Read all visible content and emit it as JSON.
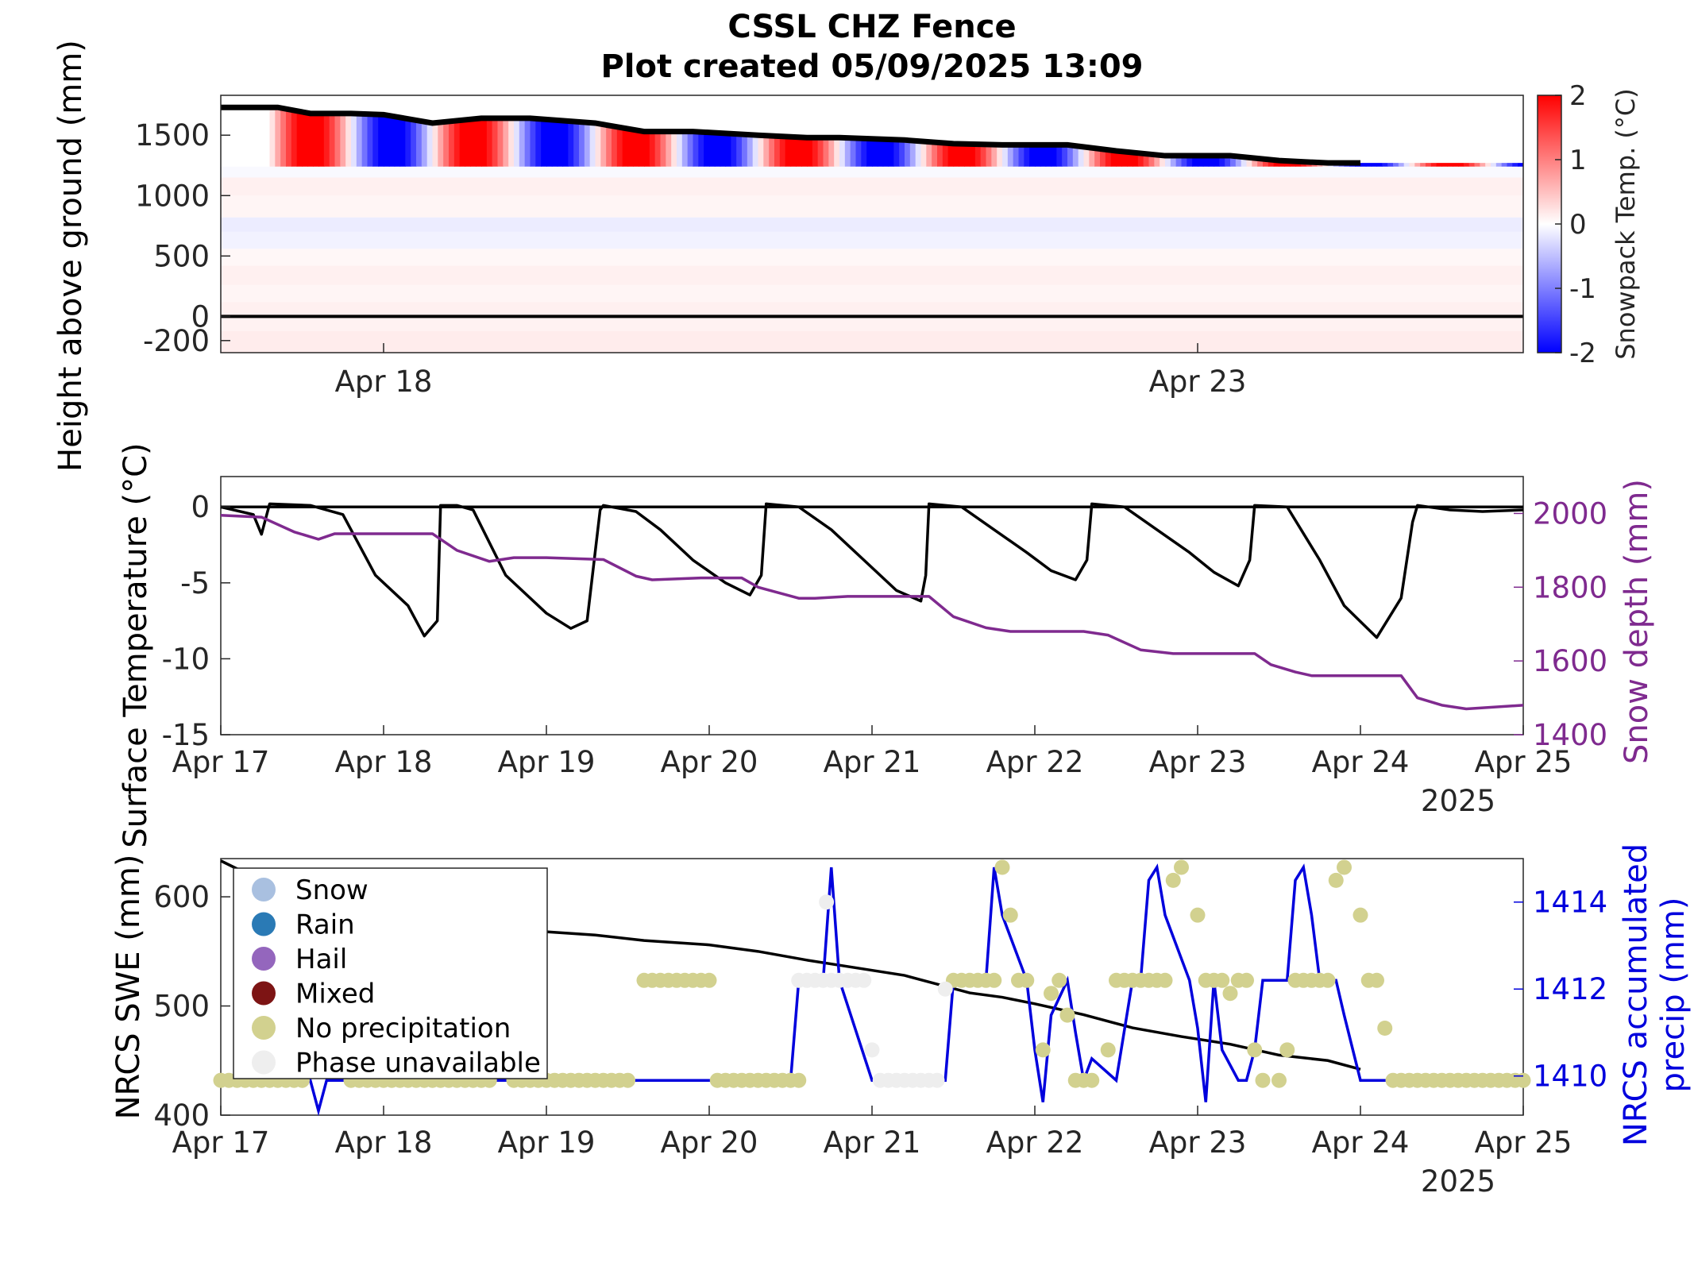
{
  "title": {
    "line1": "CSSL CHZ Fence",
    "line2": "Plot created 05/09/2025 13:09"
  },
  "chart_data": [
    {
      "type": "heatmap",
      "ylabel": "Height above ground (mm)",
      "yticks": [
        -200,
        0,
        500,
        1000,
        1500
      ],
      "ylim": [
        -300,
        1830
      ],
      "xticks": [
        {
          "day": 1,
          "label": "Apr 18"
        },
        {
          "day": 6,
          "label": "Apr 23"
        }
      ],
      "xlim_days": [
        0,
        8
      ],
      "colorbar": {
        "label": "Snowpack Temp. (°C)",
        "ticks": [
          -2,
          -1,
          0,
          1,
          2
        ],
        "range": [
          -2,
          2
        ],
        "colors": {
          "low": "#0000ff",
          "mid": "#ffffff",
          "high": "#ff0000"
        }
      },
      "snow_surface_mm": {
        "x_days": [
          0,
          0.35,
          0.55,
          0.8,
          1.0,
          1.3,
          1.6,
          1.9,
          2.3,
          2.6,
          2.9,
          3.3,
          3.6,
          3.8,
          4.2,
          4.5,
          4.8,
          5.2,
          5.5,
          5.8,
          6.0,
          6.2,
          6.5,
          6.8,
          7.0
        ],
        "y": [
          1730,
          1730,
          1680,
          1680,
          1670,
          1600,
          1640,
          1640,
          1600,
          1530,
          1530,
          1500,
          1480,
          1480,
          1460,
          1430,
          1420,
          1420,
          1370,
          1330,
          1330,
          1330,
          1290,
          1270,
          1270
        ]
      },
      "ground_line_mm": 0
    },
    {
      "type": "line",
      "ylabel": "Surface Temperature (°C)",
      "ylabel_right": "Snow depth (mm)",
      "yticks": [
        -15,
        -10,
        -5,
        0
      ],
      "ylim": [
        -15,
        2
      ],
      "yticks_right": [
        1400,
        1600,
        1800,
        2000
      ],
      "ylim_right": [
        1400,
        2100
      ],
      "xticks": [
        "Apr 17",
        "Apr 18",
        "Apr 19",
        "Apr 20",
        "Apr 21",
        "Apr 22",
        "Apr 23",
        "Apr 24",
        "Apr 25"
      ],
      "xlim_days": [
        0,
        8
      ],
      "year_label": "2025",
      "series": [
        {
          "axis": "left",
          "color": "#000000",
          "x_days": [
            0,
            0.2,
            0.25,
            0.3,
            0.55,
            0.75,
            0.95,
            1.15,
            1.25,
            1.33,
            1.35,
            1.45,
            1.55,
            1.75,
            2.0,
            2.15,
            2.25,
            2.33,
            2.35,
            2.55,
            2.7,
            2.9,
            3.1,
            3.25,
            3.32,
            3.35,
            3.55,
            3.75,
            3.95,
            4.15,
            4.3,
            4.33,
            4.35,
            4.55,
            4.75,
            4.95,
            5.1,
            5.25,
            5.32,
            5.35,
            5.55,
            5.75,
            5.95,
            6.1,
            6.25,
            6.32,
            6.35,
            6.55,
            6.75,
            6.9,
            7.1,
            7.25,
            7.32,
            7.35,
            7.55,
            7.75,
            8.0
          ],
          "values": [
            0,
            -0.5,
            -1.8,
            0.2,
            0.1,
            -0.5,
            -4.5,
            -6.5,
            -8.5,
            -7.5,
            0.1,
            0.1,
            -0.2,
            -4.5,
            -7,
            -8,
            -7.5,
            -0.2,
            0.1,
            -0.3,
            -1.5,
            -3.5,
            -5,
            -5.8,
            -4.5,
            0.2,
            0,
            -1.5,
            -3.5,
            -5.5,
            -6.2,
            -4.5,
            0.2,
            0,
            -1.5,
            -3,
            -4.2,
            -4.8,
            -3.5,
            0.2,
            0,
            -1.5,
            -3,
            -4.3,
            -5.2,
            -3.5,
            0.1,
            0,
            -3.5,
            -6.5,
            -8.6,
            -6,
            -1,
            0.1,
            -0.2,
            -0.3,
            -0.2
          ]
        },
        {
          "axis": "right",
          "color": "#7f2a8f",
          "x_days": [
            0,
            0.25,
            0.45,
            0.6,
            0.7,
            1.0,
            1.3,
            1.45,
            1.65,
            1.8,
            2.0,
            2.35,
            2.55,
            2.65,
            2.95,
            3.2,
            3.3,
            3.55,
            3.65,
            3.85,
            4.35,
            4.5,
            4.7,
            4.85,
            5.3,
            5.45,
            5.65,
            5.85,
            6.35,
            6.45,
            6.6,
            6.7,
            7.25,
            7.35,
            7.5,
            7.65,
            8.0
          ],
          "values": [
            1995,
            1990,
            1950,
            1930,
            1945,
            1945,
            1945,
            1900,
            1870,
            1880,
            1880,
            1875,
            1830,
            1820,
            1825,
            1825,
            1800,
            1770,
            1770,
            1775,
            1775,
            1720,
            1690,
            1680,
            1680,
            1670,
            1630,
            1620,
            1620,
            1590,
            1570,
            1560,
            1560,
            1500,
            1480,
            1470,
            1480
          ]
        }
      ]
    },
    {
      "type": "scatter",
      "ylabel": "NRCS SWE (mm)",
      "ylabel_right": "NRCS accumulated precip (mm)",
      "yticks": [
        400,
        500,
        600
      ],
      "ylim": [
        400,
        635
      ],
      "yticks_right": [
        1410,
        1412,
        1414
      ],
      "ylim_right": [
        1409.1,
        1415.0
      ],
      "xticks": [
        "Apr 17",
        "Apr 18",
        "Apr 19",
        "Apr 20",
        "Apr 21",
        "Apr 22",
        "Apr 23",
        "Apr 24",
        "Apr 25"
      ],
      "xlim_days": [
        0,
        8
      ],
      "year_label": "2025",
      "legend": {
        "placement": "top-left",
        "entries": [
          {
            "label": "Snow",
            "color": "#a9c0e0"
          },
          {
            "label": "Rain",
            "color": "#2a7ab5"
          },
          {
            "label": "Hail",
            "color": "#9466bd"
          },
          {
            "label": "Mixed",
            "color": "#7d1414"
          },
          {
            "label": "No precipitation",
            "color": "#d2d18f"
          },
          {
            "label": "Phase unavailable",
            "color": "#eeeeee"
          }
        ]
      },
      "swe_series": {
        "color": "#000000",
        "x_days": [
          0,
          0.15,
          0.3,
          0.6,
          1.0,
          1.5,
          2.0,
          2.3,
          2.6,
          3.0,
          3.3,
          3.6,
          3.9,
          4.2,
          4.4,
          4.6,
          4.8,
          5.0,
          5.3,
          5.6,
          5.9,
          6.2,
          6.5,
          6.8,
          7.0
        ],
        "values": [
          633,
          622,
          610,
          590,
          585,
          578,
          568,
          565,
          560,
          556,
          550,
          542,
          535,
          528,
          520,
          512,
          508,
          502,
          492,
          480,
          472,
          465,
          455,
          450,
          442
        ]
      },
      "precip_series": {
        "color": "#0000dd",
        "x_days": [
          0,
          0.55,
          0.6,
          0.65,
          0.8,
          1.6,
          1.8,
          2.5,
          2.7,
          3.0,
          3.15,
          3.2,
          3.5,
          3.55,
          3.7,
          3.75,
          3.8,
          4.0,
          4.45,
          4.5,
          4.7,
          4.75,
          4.8,
          4.95,
          5.0,
          5.05,
          5.1,
          5.2,
          5.25,
          5.3,
          5.35,
          5.5,
          5.6,
          5.65,
          5.7,
          5.75,
          5.8,
          5.95,
          6.0,
          6.05,
          6.1,
          6.15,
          6.25,
          6.3,
          6.35,
          6.4,
          6.55,
          6.6,
          6.65,
          6.7,
          6.75,
          6.85,
          6.9,
          7.0,
          8.0
        ],
        "values": [
          1409.9,
          1409.9,
          1409.2,
          1409.9,
          1409.9,
          1409.9,
          1409.9,
          1409.9,
          1409.9,
          1409.9,
          1409.9,
          1409.9,
          1409.9,
          1412.2,
          1412.2,
          1414.8,
          1412.2,
          1409.9,
          1409.9,
          1412.2,
          1412.2,
          1414.8,
          1413.7,
          1412.2,
          1410.6,
          1409.4,
          1411.4,
          1412.2,
          1411.0,
          1409.9,
          1410.4,
          1409.9,
          1412.2,
          1412.2,
          1414.5,
          1414.8,
          1413.7,
          1412.2,
          1411.1,
          1409.4,
          1412.2,
          1410.6,
          1409.9,
          1409.9,
          1410.6,
          1412.2,
          1412.2,
          1414.5,
          1414.8,
          1413.7,
          1412.2,
          1412.2,
          1411.4,
          1409.9,
          1409.9
        ]
      },
      "phase_points": {
        "no_precip_x_days": [
          0.0,
          0.05,
          0.1,
          0.15,
          0.2,
          0.25,
          0.3,
          0.35,
          0.4,
          0.45,
          0.5,
          0.8,
          0.85,
          0.9,
          0.95,
          1.0,
          1.05,
          1.1,
          1.15,
          1.2,
          1.25,
          1.3,
          1.35,
          1.4,
          1.45,
          1.5,
          1.55,
          1.6,
          1.65,
          1.8,
          1.85,
          1.9,
          1.95,
          2.0,
          2.05,
          2.1,
          2.15,
          2.2,
          2.25,
          2.3,
          2.35,
          2.4,
          2.45,
          2.5,
          2.6,
          2.65,
          2.7,
          2.75,
          2.8,
          2.85,
          2.9,
          2.95,
          3.0,
          3.05,
          3.1,
          3.15,
          3.2,
          3.25,
          3.3,
          3.35,
          3.4,
          3.45,
          3.5,
          3.55,
          4.5,
          4.55,
          4.6,
          4.65,
          4.7,
          4.75,
          4.8,
          4.85,
          4.9,
          4.95,
          5.05,
          5.1,
          5.15,
          5.2,
          5.25,
          5.3,
          5.35,
          5.45,
          5.5,
          5.55,
          5.6,
          5.65,
          5.7,
          5.75,
          5.8,
          5.85,
          5.9,
          6.0,
          6.05,
          6.1,
          6.15,
          6.2,
          6.25,
          6.3,
          6.35,
          6.4,
          6.5,
          6.55,
          6.6,
          6.65,
          6.7,
          6.75,
          6.8,
          6.85,
          6.9,
          7.0,
          7.05,
          7.1,
          7.15,
          7.2,
          7.25,
          7.3,
          7.35,
          7.4,
          7.45,
          7.5,
          7.55,
          7.6,
          7.65,
          7.7,
          7.75,
          7.8,
          7.85,
          7.9,
          7.95,
          8.0
        ],
        "no_precip_values": [
          1409.9,
          1409.9,
          1409.9,
          1409.9,
          1409.9,
          1409.9,
          1409.9,
          1409.9,
          1409.9,
          1409.9,
          1409.9,
          1409.9,
          1409.9,
          1409.9,
          1409.9,
          1409.9,
          1409.9,
          1409.9,
          1409.9,
          1409.9,
          1409.9,
          1409.9,
          1409.9,
          1409.9,
          1409.9,
          1409.9,
          1409.9,
          1409.9,
          1409.9,
          1409.9,
          1409.9,
          1409.9,
          1409.9,
          1409.9,
          1409.9,
          1409.9,
          1409.9,
          1409.9,
          1409.9,
          1409.9,
          1409.9,
          1409.9,
          1409.9,
          1409.9,
          1412.2,
          1412.2,
          1412.2,
          1412.2,
          1412.2,
          1412.2,
          1412.2,
          1412.2,
          1412.2,
          1409.9,
          1409.9,
          1409.9,
          1409.9,
          1409.9,
          1409.9,
          1409.9,
          1409.9,
          1409.9,
          1409.9,
          1409.9,
          1412.2,
          1412.2,
          1412.2,
          1412.2,
          1412.2,
          1412.2,
          1414.8,
          1413.7,
          1412.2,
          1412.2,
          1410.6,
          1411.9,
          1412.2,
          1411.4,
          1409.9,
          1409.9,
          1409.9,
          1410.6,
          1412.2,
          1412.2,
          1412.2,
          1412.2,
          1412.2,
          1412.2,
          1412.2,
          1414.5,
          1414.8,
          1413.7,
          1412.2,
          1412.2,
          1412.2,
          1411.9,
          1412.2,
          1412.2,
          1410.6,
          1409.9,
          1409.9,
          1410.6,
          1412.2,
          1412.2,
          1412.2,
          1412.2,
          1412.2,
          1414.5,
          1414.8,
          1413.7,
          1412.2,
          1412.2,
          1411.1,
          1409.9,
          1409.9,
          1409.9,
          1409.9,
          1409.9,
          1409.9,
          1409.9,
          1409.9,
          1409.9,
          1409.9,
          1409.9,
          1409.9,
          1409.9,
          1409.9,
          1409.9,
          1409.9,
          1409.9,
          1409.9,
          1409.9
        ],
        "unavailable_x_days": [
          3.55,
          3.6,
          3.65,
          3.7,
          3.75,
          3.8,
          3.85,
          3.9,
          3.95,
          4.0,
          4.05,
          4.1,
          4.15,
          4.2,
          4.25,
          4.3,
          4.35,
          4.4,
          4.45,
          3.72
        ],
        "unavailable_values": [
          1412.2,
          1412.2,
          1412.2,
          1412.2,
          1412.2,
          1412.2,
          1412.2,
          1412.2,
          1412.2,
          1410.6,
          1409.9,
          1409.9,
          1409.9,
          1409.9,
          1409.9,
          1409.9,
          1409.9,
          1409.9,
          1412.0,
          1414.0
        ]
      }
    }
  ]
}
